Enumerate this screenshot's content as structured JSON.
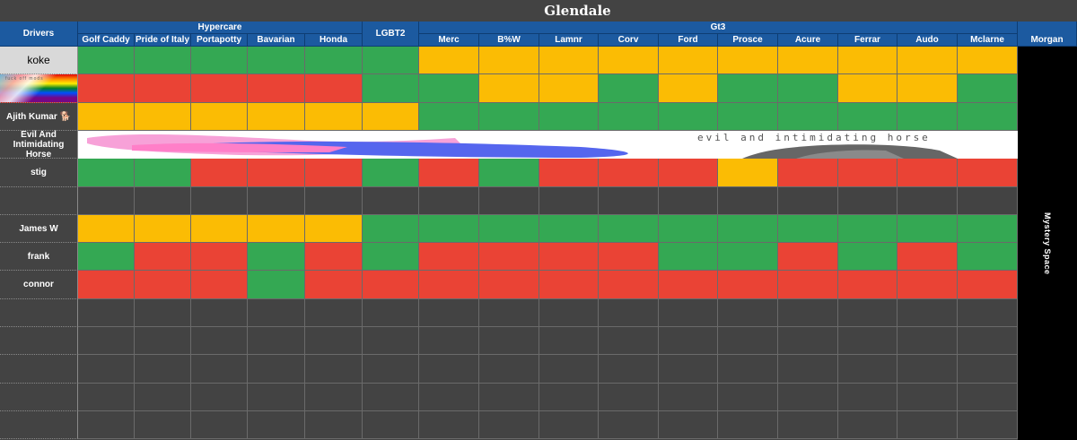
{
  "sheet_title": "Glendale",
  "drivers_header": "Drivers",
  "groups": [
    {
      "label": "Hypercare",
      "cols": 5
    },
    {
      "label": "LGBT2",
      "cols": 1
    },
    {
      "label": "Gt3",
      "cols": 10
    },
    {
      "label": "",
      "cols": 1
    }
  ],
  "columns": [
    "Golf Caddy",
    "Pride of Italy",
    "Portapotty",
    "Bavarian",
    "Honda",
    "",
    "Merc",
    "B%W",
    "Lamnr",
    "Corv",
    "Ford",
    "Prosce",
    "Acure",
    "Ferrar",
    "Audo",
    "Mclarne",
    "Morgan"
  ],
  "mystery_label": "Mystery Space",
  "banner_row_text": "evil and intimidating horse",
  "pride_banner_text": "fuck off mods",
  "rows": [
    {
      "driver": "koke",
      "light": true,
      "cells": [
        "g",
        "g",
        "g",
        "g",
        "g",
        "g",
        "y",
        "y",
        "y",
        "y",
        "y",
        "y",
        "y",
        "y",
        "y",
        "y"
      ]
    },
    {
      "driver": "",
      "pride": true,
      "cells": [
        "r",
        "r",
        "r",
        "r",
        "r",
        "g",
        "g",
        "y",
        "y",
        "g",
        "y",
        "g",
        "g",
        "y",
        "y",
        "g"
      ]
    },
    {
      "driver": "Ajith Kumar 🐕",
      "cells": [
        "y",
        "y",
        "y",
        "y",
        "y",
        "y",
        "g",
        "g",
        "g",
        "g",
        "g",
        "g",
        "g",
        "g",
        "g",
        "g"
      ]
    },
    {
      "driver": "Evil And Intimidating Horse",
      "banner": true,
      "cells": []
    },
    {
      "driver": "stig",
      "cells": [
        "g",
        "g",
        "r",
        "r",
        "r",
        "g",
        "r",
        "g",
        "r",
        "r",
        "r",
        "y",
        "r",
        "r",
        "r",
        "r"
      ]
    },
    {
      "driver": "",
      "cells": [
        "e",
        "e",
        "e",
        "e",
        "e",
        "e",
        "e",
        "e",
        "e",
        "e",
        "e",
        "e",
        "e",
        "e",
        "e",
        "e"
      ]
    },
    {
      "driver": "James W",
      "cells": [
        "y",
        "y",
        "y",
        "y",
        "y",
        "g",
        "g",
        "g",
        "g",
        "g",
        "g",
        "g",
        "g",
        "g",
        "g",
        "g"
      ]
    },
    {
      "driver": "frank",
      "cells": [
        "g",
        "r",
        "r",
        "g",
        "r",
        "g",
        "r",
        "r",
        "r",
        "r",
        "g",
        "g",
        "r",
        "g",
        "r",
        "g"
      ]
    },
    {
      "driver": "connor",
      "cells": [
        "r",
        "r",
        "r",
        "g",
        "r",
        "r",
        "r",
        "r",
        "r",
        "r",
        "r",
        "r",
        "r",
        "r",
        "r",
        "r"
      ]
    },
    {
      "driver": "",
      "cells": [
        "e",
        "e",
        "e",
        "e",
        "e",
        "e",
        "e",
        "e",
        "e",
        "e",
        "e",
        "e",
        "e",
        "e",
        "e",
        "e"
      ]
    },
    {
      "driver": "",
      "cells": [
        "e",
        "e",
        "e",
        "e",
        "e",
        "e",
        "e",
        "e",
        "e",
        "e",
        "e",
        "e",
        "e",
        "e",
        "e",
        "e"
      ]
    },
    {
      "driver": "",
      "cells": [
        "e",
        "e",
        "e",
        "e",
        "e",
        "e",
        "e",
        "e",
        "e",
        "e",
        "e",
        "e",
        "e",
        "e",
        "e",
        "e"
      ]
    },
    {
      "driver": "",
      "cells": [
        "e",
        "e",
        "e",
        "e",
        "e",
        "e",
        "e",
        "e",
        "e",
        "e",
        "e",
        "e",
        "e",
        "e",
        "e",
        "e"
      ]
    },
    {
      "driver": "",
      "cells": [
        "e",
        "e",
        "e",
        "e",
        "e",
        "e",
        "e",
        "e",
        "e",
        "e",
        "e",
        "e",
        "e",
        "e",
        "e",
        "e"
      ]
    }
  ],
  "colors": {
    "g": "#34a853",
    "y": "#fbbc04",
    "r": "#ea4335",
    "e": "#434343",
    "header": "#1c5aa0"
  }
}
